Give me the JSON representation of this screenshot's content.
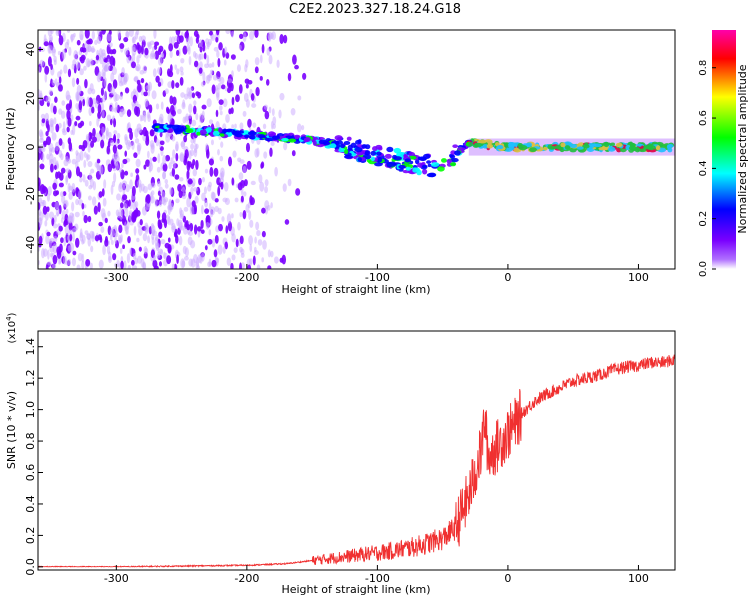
{
  "page": {
    "title": "C2E2.2023.327.18.24.G18"
  },
  "chart_data": [
    {
      "type": "heatmap",
      "title": "C2E2.2023.327.18.24.G18",
      "xlabel": "Height of straight line (km)",
      "ylabel": "Frequency (Hz)",
      "xlim": [
        -360,
        128
      ],
      "ylim": [
        -50,
        48
      ],
      "xticks": [
        -300,
        -200,
        -100,
        0,
        100
      ],
      "xtick_labels": [
        "-300",
        "-200",
        "-100",
        "0",
        "100"
      ],
      "yticks": [
        -40,
        -20,
        0,
        20,
        40
      ],
      "ytick_labels": [
        "-40",
        "-20",
        "0",
        "20",
        "40"
      ],
      "colorbar": {
        "label": "Normalized spectral amplitude",
        "range": [
          0,
          0.95
        ],
        "ticks": [
          0.0,
          0.2,
          0.4,
          0.6,
          0.8
        ],
        "tick_labels": [
          "0.0",
          "0.2",
          "0.4",
          "0.6",
          "0.8"
        ],
        "colormap": [
          "#ffffff",
          "#7a00ff",
          "#0000ff",
          "#00ffff",
          "#00ff00",
          "#ffff00",
          "#ff0000",
          "#ff00aa"
        ]
      },
      "features": {
        "noise_region_x": [
          -360,
          -150
        ],
        "signal_track": [
          [
            -270,
            8
          ],
          [
            -200,
            5
          ],
          [
            -150,
            3
          ],
          [
            -110,
            -2
          ],
          [
            -80,
            -6
          ],
          [
            -55,
            -8
          ],
          [
            -40,
            -3
          ],
          [
            -30,
            2
          ],
          [
            0,
            0
          ],
          [
            128,
            0
          ]
        ]
      }
    },
    {
      "type": "line",
      "xlabel": "Height of straight line (km)",
      "ylabel": "SNR (10 * v/v)",
      "y_multiplier": "(x10",
      "y_multiplier_exp": "4",
      "y_multiplier_close": ")",
      "xlim": [
        -360,
        128
      ],
      "ylim": [
        -0.02,
        1.5
      ],
      "xticks": [
        -300,
        -200,
        -100,
        0,
        100
      ],
      "xtick_labels": [
        "-300",
        "-200",
        "-100",
        "0",
        "100"
      ],
      "yticks": [
        0.0,
        0.2,
        0.4,
        0.6,
        0.8,
        1.0,
        1.2,
        1.4
      ],
      "ytick_labels": [
        "0.0",
        "0.2",
        "0.4",
        "0.6",
        "0.8",
        "1.0",
        "1.2",
        "1.4"
      ],
      "color": "#f03030",
      "series": [
        {
          "x": [
            -360,
            -300,
            -250,
            -200,
            -170,
            -150,
            -130,
            -110,
            -90,
            -70,
            -50,
            -40,
            -30,
            -25,
            -20,
            -18,
            -15,
            -10,
            -5,
            0,
            5,
            10,
            20,
            30,
            40,
            50,
            60,
            70,
            80,
            90,
            100,
            110,
            120,
            128
          ],
          "y": [
            0.0,
            0.0,
            0.005,
            0.01,
            0.02,
            0.04,
            0.06,
            0.08,
            0.1,
            0.13,
            0.18,
            0.25,
            0.45,
            0.6,
            0.75,
            0.95,
            0.7,
            0.75,
            0.8,
            0.85,
            0.9,
            0.97,
            1.05,
            1.1,
            1.14,
            1.18,
            1.2,
            1.22,
            1.25,
            1.27,
            1.28,
            1.3,
            1.3,
            1.32
          ]
        }
      ]
    }
  ]
}
